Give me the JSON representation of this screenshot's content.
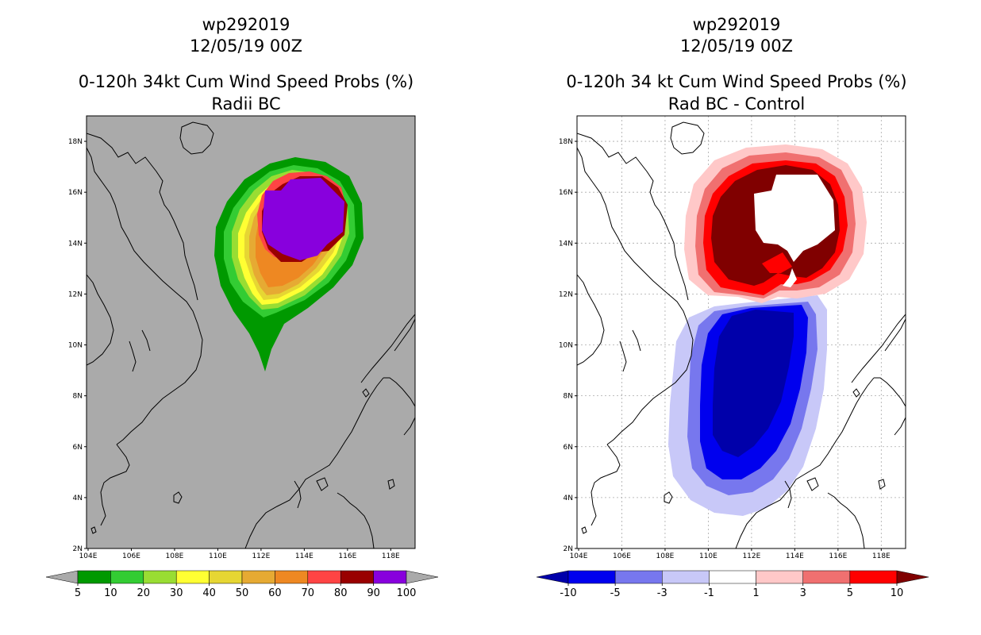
{
  "left_panel": {
    "storm_id": "wp292019",
    "datetime": "12/05/19 00Z",
    "title": "0-120h 34kt Cum Wind Speed Probs (%)",
    "subtitle": "Radii BC",
    "colorbar": {
      "labels": [
        "5",
        "10",
        "20",
        "30",
        "40",
        "50",
        "60",
        "70",
        "80",
        "90",
        "100"
      ],
      "colors": [
        "#009900",
        "#33cc33",
        "#99dd33",
        "#ffff33",
        "#e6d633",
        "#e6aa33",
        "#ee8822",
        "#ff4444",
        "#990000",
        "#8800dd"
      ]
    }
  },
  "right_panel": {
    "storm_id": "wp292019",
    "datetime": "12/05/19 00Z",
    "title": "0-120h 34 kt Cum Wind Speed Probs (%)",
    "subtitle": "Rad BC - Control",
    "colorbar": {
      "labels": [
        "-10",
        "-5",
        "-3",
        "-1",
        "1",
        "3",
        "5",
        "10"
      ],
      "colors": [
        "#0000aa",
        "#0000ee",
        "#7777ee",
        "#c8c8f8",
        "#ffffff",
        "#ffc8c8",
        "#f07070",
        "#ff0000",
        "#800000"
      ]
    }
  },
  "axes": {
    "lon_labels": [
      "104E",
      "106E",
      "108E",
      "110E",
      "112E",
      "114E",
      "116E",
      "118E"
    ],
    "lat_labels": [
      "2N",
      "4N",
      "6N",
      "8N",
      "10N",
      "12N",
      "14N",
      "16N",
      "18N"
    ]
  }
}
